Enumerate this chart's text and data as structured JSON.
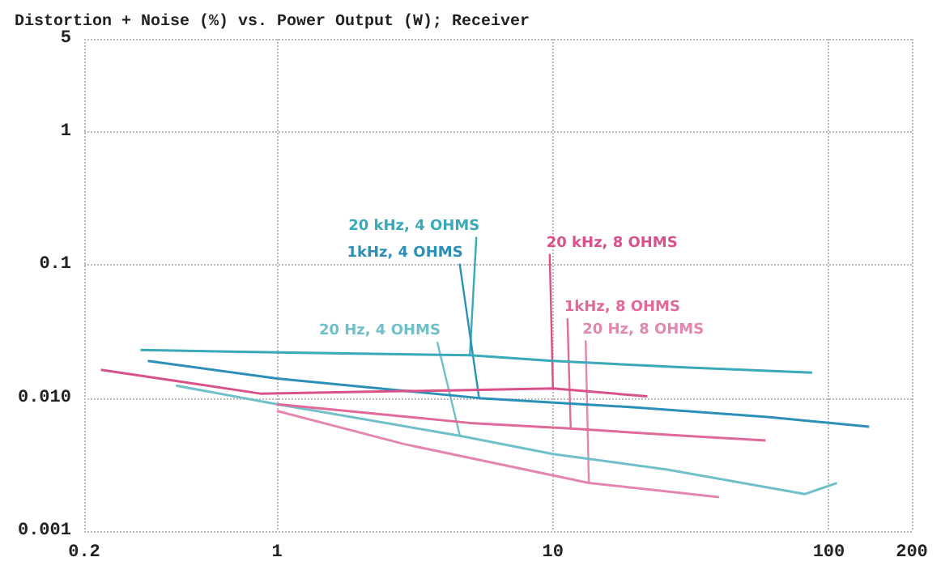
{
  "chart_data": {
    "type": "line",
    "title": "Distortion + Noise (%) vs. Power Output (W); Receiver",
    "log": "xy",
    "grid": true,
    "marker": "none",
    "xlim": [
      0.2,
      200
    ],
    "xticks": [
      0.2,
      1,
      10,
      100,
      200
    ],
    "ylim": [
      0.001,
      5
    ],
    "yticks": [
      {
        "value": 0.001,
        "label": "0.001"
      },
      {
        "value": 0.01,
        "label": "0.010"
      },
      0.1,
      1,
      5
    ],
    "series": [
      {
        "color": "#3aa9b8",
        "x": [
          0.32,
          1,
          5,
          10,
          30,
          87
        ],
        "values": [
          0.023,
          0.022,
          0.021,
          0.019,
          0.017,
          0.0155
        ]
      },
      {
        "color": "#2b8fb8",
        "x": [
          0.34,
          1,
          5.4,
          20,
          60,
          140
        ],
        "values": [
          0.019,
          0.014,
          0.01,
          0.0085,
          0.0072,
          0.0061
        ]
      },
      {
        "color": "#6fc0c8",
        "x": [
          0.43,
          1,
          4.6,
          10,
          26,
          82,
          107
        ],
        "values": [
          0.0124,
          0.009,
          0.0052,
          0.0038,
          0.0029,
          0.0019,
          0.0023
        ]
      },
      {
        "color": "#d9508a",
        "x": [
          0.23,
          0.87,
          5,
          10,
          22
        ],
        "values": [
          0.0163,
          0.0108,
          0.0115,
          0.0118,
          0.0103
        ]
      },
      {
        "color": "#e06a9a",
        "x": [
          1,
          5,
          11.6,
          30,
          59
        ],
        "values": [
          0.009,
          0.0065,
          0.0059,
          0.0052,
          0.0048
        ]
      },
      {
        "color": "#e487b0",
        "x": [
          1,
          2.9,
          13.5,
          40
        ],
        "values": [
          0.008,
          0.0045,
          0.0023,
          0.0018
        ]
      }
    ],
    "annotations": [
      {
        "text": "20 kHz, 4 OHMS",
        "x": 5,
        "y": 0.021
      },
      {
        "text": "1kHz, 4 OHMS",
        "x": 5.4,
        "y": 0.01
      },
      {
        "text": "20 Hz, 4 OHMS",
        "x": 4.6,
        "y": 0.0052
      },
      {
        "text": "20 kHz, 8 OHMS",
        "x": 10,
        "y": 0.0118
      },
      {
        "text": "1kHz, 8 OHMS",
        "x": 11.6,
        "y": 0.0059
      },
      {
        "text": "20 Hz, 8 OHMS",
        "x": 13.5,
        "y": 0.0023
      }
    ]
  }
}
